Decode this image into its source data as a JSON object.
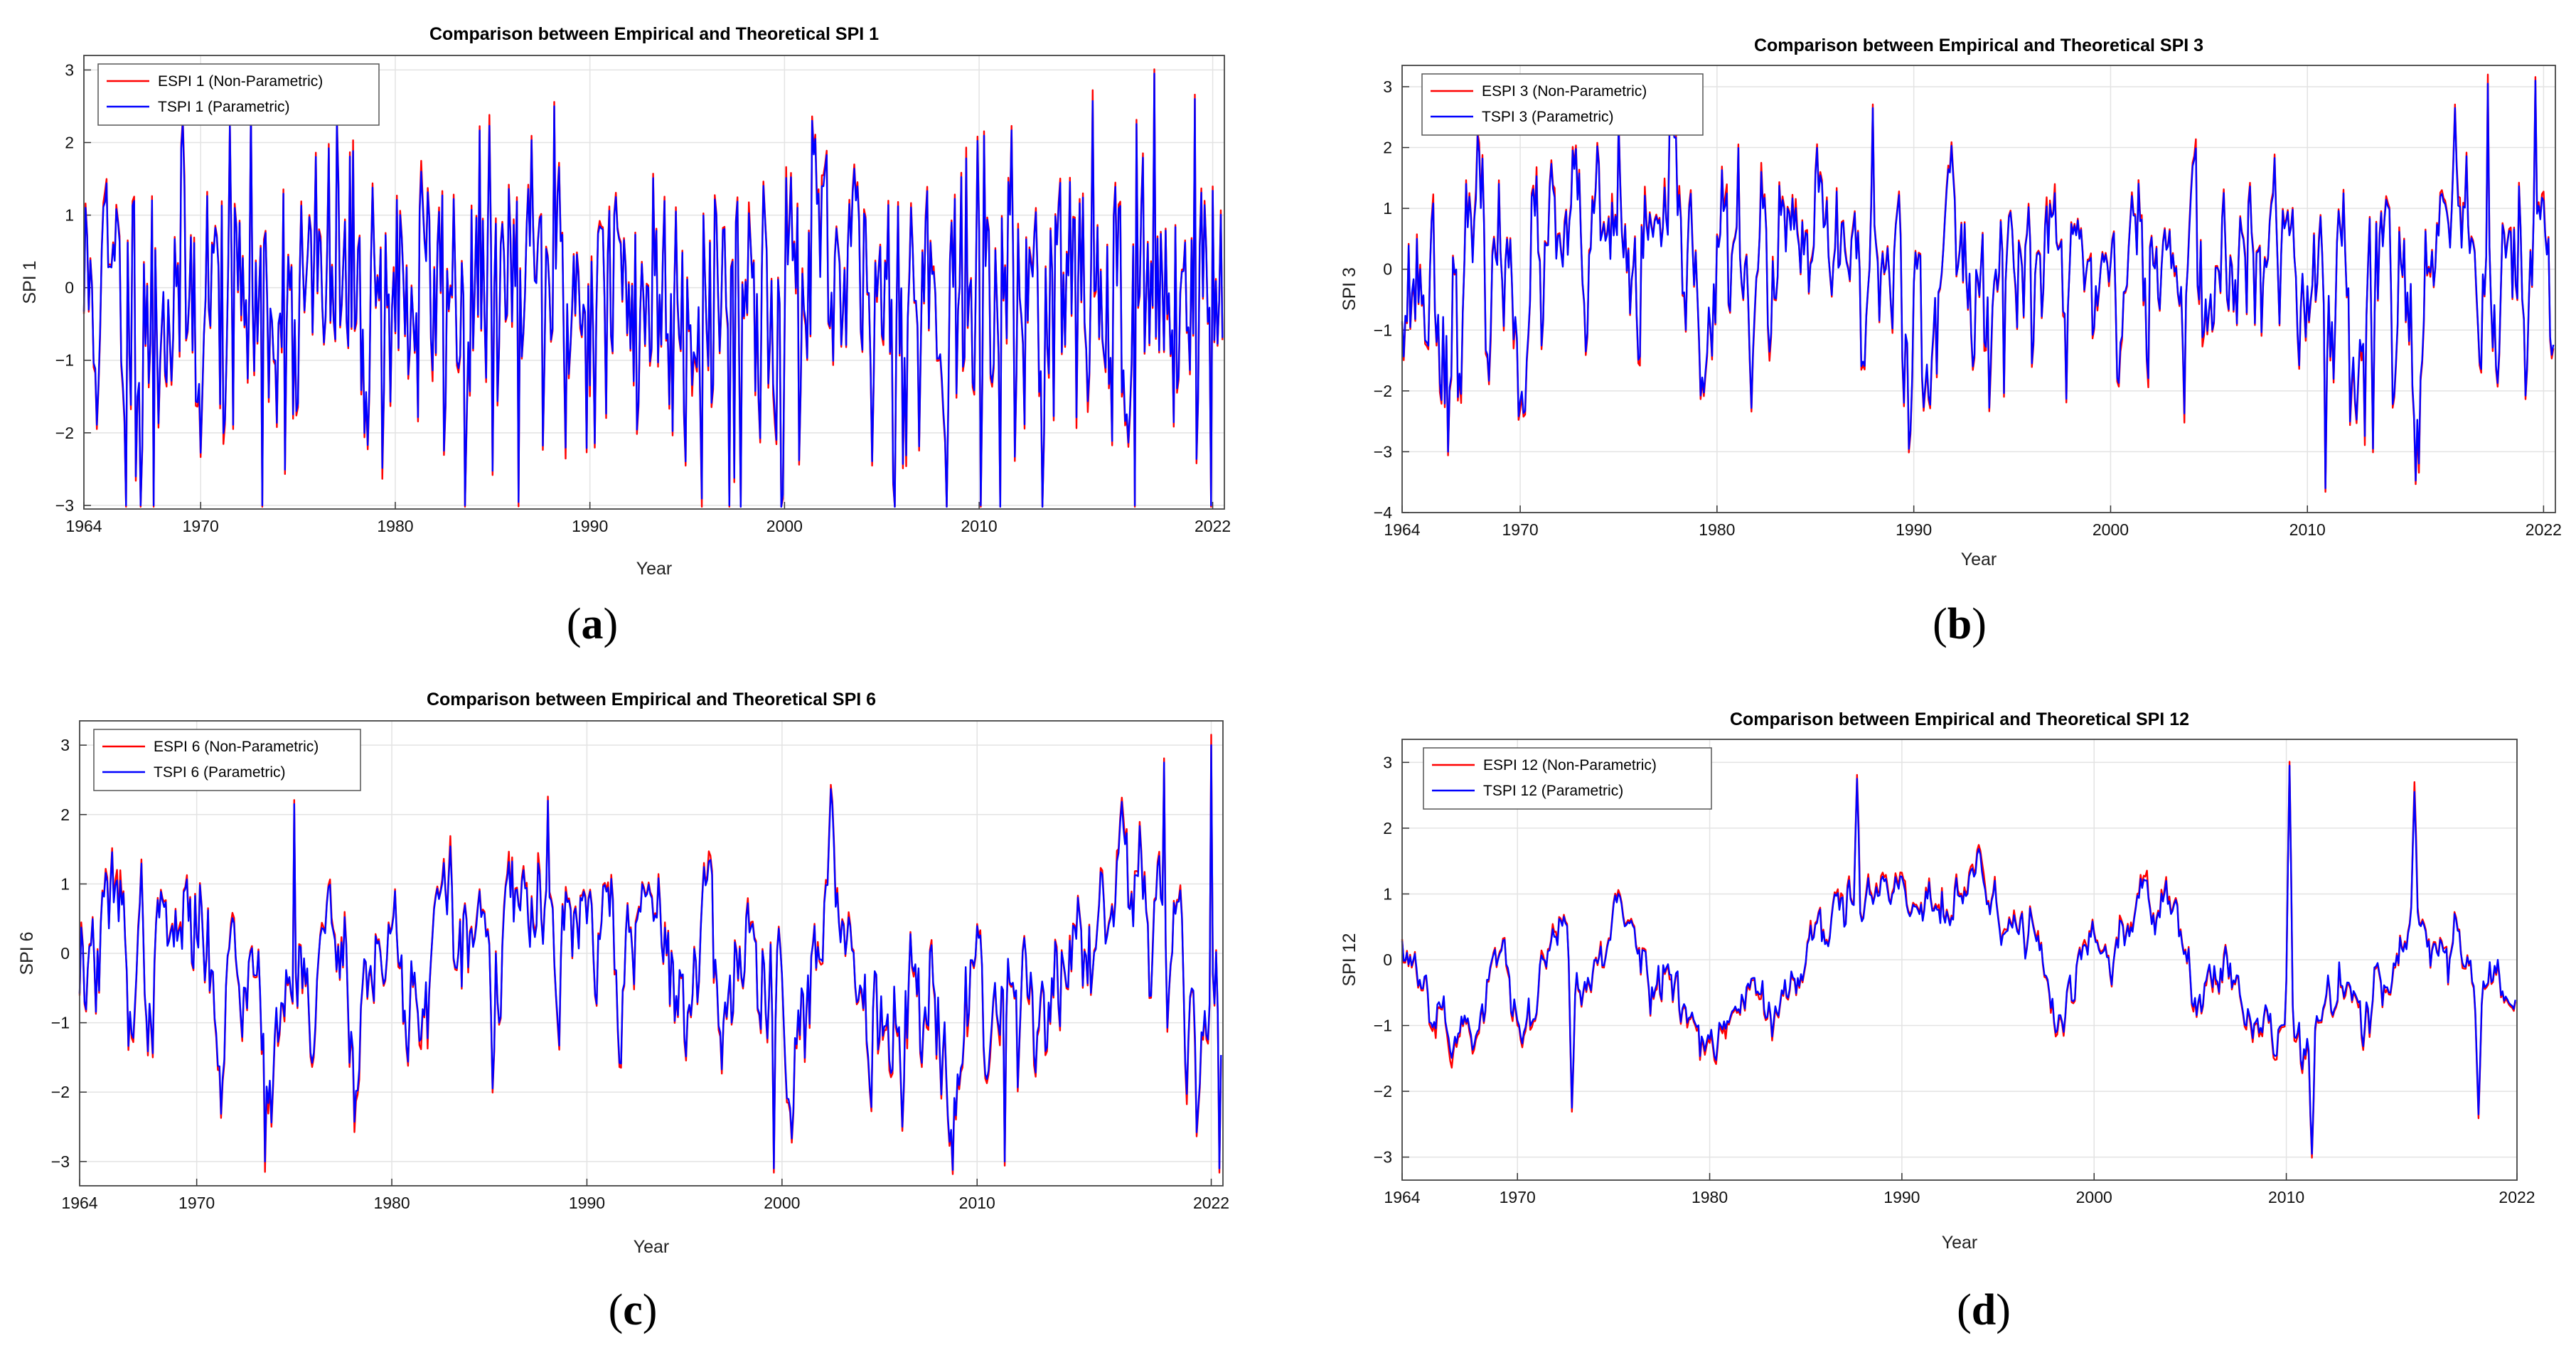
{
  "chart_data": [
    {
      "id": "a",
      "type": "line",
      "title": "Comparison between Empirical and Theoretical SPI 1",
      "xlabel": "Year",
      "ylabel": "SPI 1",
      "xlim": [
        1964,
        2022.6
      ],
      "ylim": [
        -3.05,
        3.2
      ],
      "xticks": [
        1964,
        1970,
        1980,
        1990,
        2000,
        2010,
        2022
      ],
      "yticks": [
        -3,
        -2,
        -1,
        0,
        1,
        2,
        3
      ],
      "grid": true,
      "legend_position": "top-left",
      "series": [
        {
          "name": "ESPI 1 (Non-Parametric)",
          "color": "#ff0000"
        },
        {
          "name": "TSPI 1 (Parametric)",
          "color": "#0000ff"
        }
      ],
      "highlights": [
        {
          "year": 1966.2,
          "value": -3
        },
        {
          "year": 1966.9,
          "value": -3
        },
        {
          "year": 1967.6,
          "value": -3
        },
        {
          "year": 1973.2,
          "value": -3
        },
        {
          "year": 1977.0,
          "value": 2.3
        },
        {
          "year": 1983.6,
          "value": -3
        },
        {
          "year": 1988.2,
          "value": 2.5
        },
        {
          "year": 1997.2,
          "value": -3
        },
        {
          "year": 2001.4,
          "value": 2.3
        },
        {
          "year": 2010.1,
          "value": -3
        },
        {
          "year": 2018.0,
          "value": -3
        },
        {
          "year": 2019.0,
          "value": 2.95
        },
        {
          "year": 2021.1,
          "value": 2.6
        },
        {
          "year": 2021.9,
          "value": -3
        }
      ],
      "letter": "a"
    },
    {
      "id": "b",
      "type": "line",
      "title": "Comparison between Empirical and Theoretical SPI 3",
      "xlabel": "Year",
      "ylabel": "SPI 3",
      "xlim": [
        1964,
        2022.6
      ],
      "ylim": [
        -4,
        3.35
      ],
      "xticks": [
        1964,
        1970,
        1980,
        1990,
        2000,
        2010,
        2022
      ],
      "yticks": [
        -4,
        -3,
        -2,
        -1,
        0,
        1,
        2,
        3
      ],
      "grid": true,
      "legend_position": "top-left",
      "series": [
        {
          "name": "ESPI 3 (Non-Parametric)",
          "color": "#ff0000"
        },
        {
          "name": "TSPI 3 (Parametric)",
          "color": "#0000ff"
        }
      ],
      "highlights": [
        {
          "year": 1966.3,
          "value": -3
        },
        {
          "year": 1975.0,
          "value": 2.4
        },
        {
          "year": 1987.9,
          "value": 2.65
        },
        {
          "year": 2010.9,
          "value": -3.6
        },
        {
          "year": 2013.3,
          "value": -2.95
        },
        {
          "year": 2019.2,
          "value": 3.05
        },
        {
          "year": 2021.6,
          "value": 3.1
        }
      ],
      "letter": "b"
    },
    {
      "id": "c",
      "type": "line",
      "title": "Comparison between Empirical and Theoretical SPI 6",
      "xlabel": "Year",
      "ylabel": "SPI 6",
      "xlim": [
        1964,
        2022.6
      ],
      "ylim": [
        -3.35,
        3.35
      ],
      "xticks": [
        1964,
        1970,
        1980,
        1990,
        2000,
        2010,
        2022
      ],
      "yticks": [
        -3,
        -2,
        -1,
        0,
        1,
        2,
        3
      ],
      "grid": true,
      "legend_position": "top-left",
      "series": [
        {
          "name": "ESPI 6 (Non-Parametric)",
          "color": "#ff0000"
        },
        {
          "name": "TSPI 6 (Parametric)",
          "color": "#0000ff"
        }
      ],
      "highlights": [
        {
          "year": 1973.5,
          "value": -3
        },
        {
          "year": 1975.0,
          "value": 2.15
        },
        {
          "year": 1988.0,
          "value": 2.2
        },
        {
          "year": 1999.6,
          "value": -3.1
        },
        {
          "year": 2011.4,
          "value": -3
        },
        {
          "year": 2019.6,
          "value": 2.75
        },
        {
          "year": 2022.0,
          "value": 3.0
        },
        {
          "year": 2022.4,
          "value": -3.1
        }
      ],
      "letter": "c"
    },
    {
      "id": "d",
      "type": "line",
      "title": "Comparison between Empirical and Theoretical SPI 12",
      "xlabel": "Year",
      "ylabel": "SPI 12",
      "xlim": [
        1964,
        2022
      ],
      "ylim": [
        -3.35,
        3.35
      ],
      "xticks": [
        1964,
        1970,
        1980,
        1990,
        2000,
        2010,
        2022
      ],
      "yticks": [
        -3,
        -2,
        -1,
        0,
        1,
        2,
        3
      ],
      "grid": true,
      "legend_position": "top-left",
      "series": [
        {
          "name": "ESPI 12 (Non-Parametric)",
          "color": "#ff0000"
        },
        {
          "name": "TSPI 12 (Parametric)",
          "color": "#0000ff"
        }
      ],
      "highlights": [
        {
          "year": 1972.8,
          "value": -2.25
        },
        {
          "year": 1987.7,
          "value": 2.75
        },
        {
          "year": 2010.2,
          "value": 2.95
        },
        {
          "year": 2011.3,
          "value": -2.95
        },
        {
          "year": 2016.7,
          "value": 2.55
        },
        {
          "year": 2020.0,
          "value": -2.35
        }
      ],
      "letter": "d"
    }
  ]
}
